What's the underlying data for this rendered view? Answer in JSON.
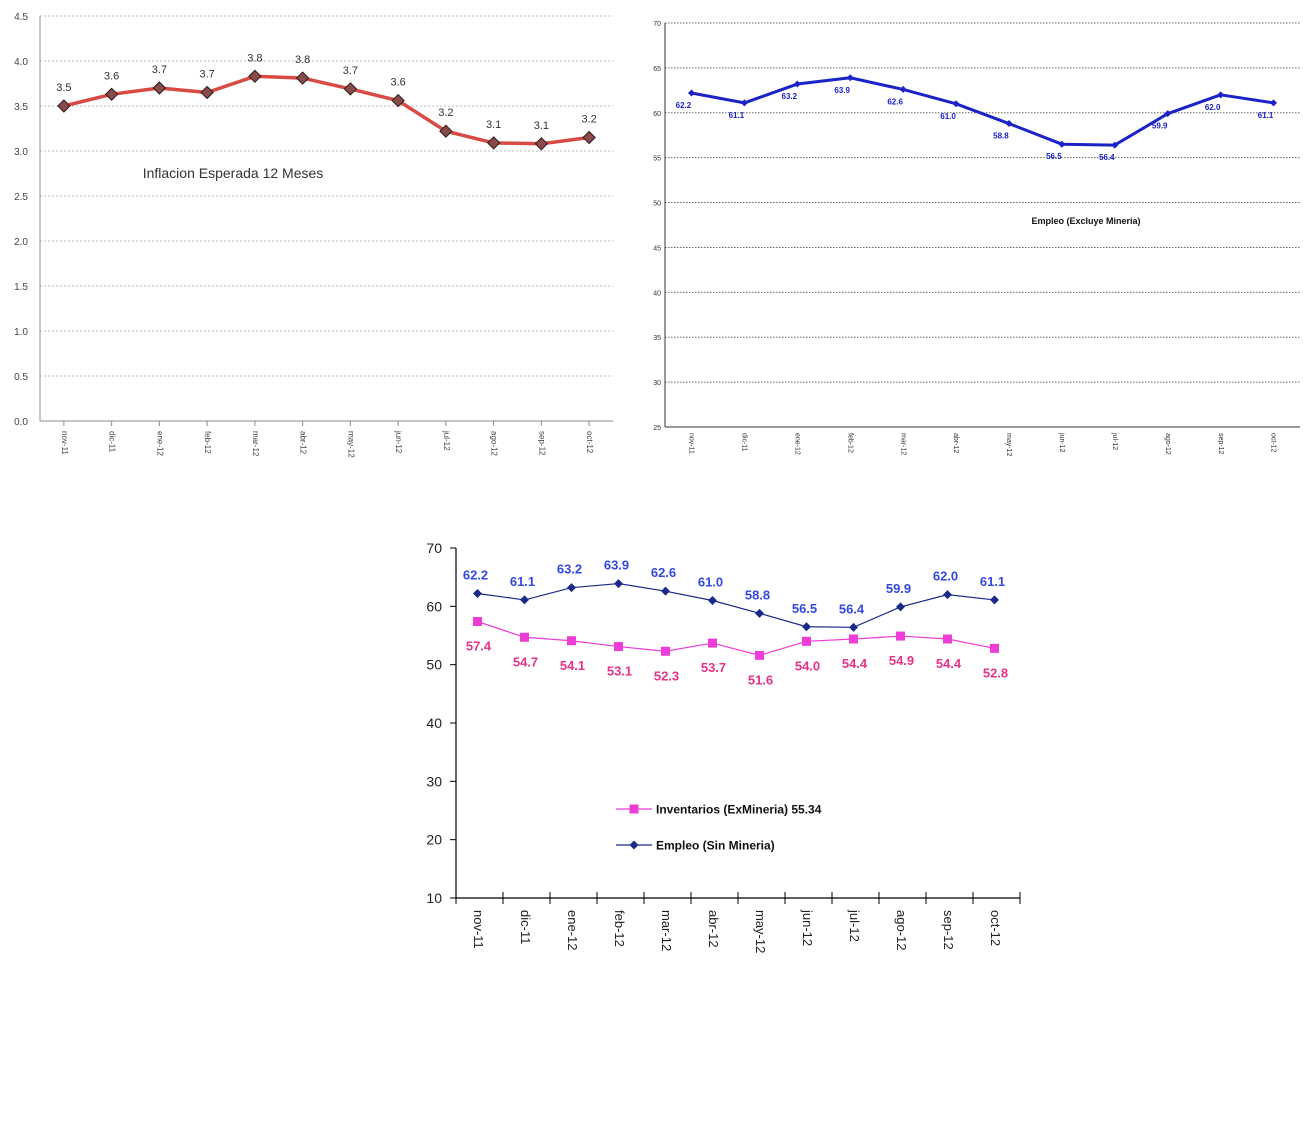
{
  "chart_data": [
    {
      "type": "line",
      "title": "Inflacion Esperada 12 Meses",
      "categories": [
        "nov-11",
        "dic-11",
        "ene-12",
        "feb-12",
        "mar-12",
        "abr-12",
        "may-12",
        "jun-12",
        "jul-12",
        "ago-12",
        "sep-12",
        "oct-12"
      ],
      "series": [
        {
          "values": [
            3.5,
            3.63,
            3.7,
            3.65,
            3.83,
            3.81,
            3.69,
            3.56,
            3.22,
            3.09,
            3.08,
            3.15
          ],
          "labels": [
            "3.5",
            "3.6",
            "3.7",
            "3.7",
            "3.8",
            "3.8",
            "3.7",
            "3.6",
            "3.2",
            "3.1",
            "3.1",
            "3.2"
          ],
          "color": "#d84a44",
          "marker_color": "#8a4a4a"
        }
      ],
      "yticks": [
        "0.0",
        "0.5",
        "1.0",
        "1.5",
        "2.0",
        "2.5",
        "3.0",
        "3.5",
        "4.0",
        "4.5"
      ],
      "ylim": [
        0,
        4.5
      ],
      "grid": true
    },
    {
      "type": "line",
      "title": "Empleo (Excluye Mineria)",
      "categories": [
        "nov-11",
        "dic-11",
        "ene-12",
        "feb-12",
        "mar-12",
        "abr-12",
        "may-12",
        "jun-12",
        "jul-12",
        "ago-12",
        "sep-12",
        "oct-12"
      ],
      "series": [
        {
          "values": [
            62.2,
            61.1,
            63.2,
            63.9,
            62.6,
            61.0,
            58.8,
            56.5,
            56.4,
            59.9,
            62.0,
            61.1
          ],
          "labels": [
            "62.2",
            "61.1",
            "63.2",
            "63.9",
            "62.6",
            "61.0",
            "58.8",
            "56.5",
            "56.4",
            "59.9",
            "62.0",
            "61.1"
          ],
          "color": "#1a22c8"
        }
      ],
      "yticks": [
        "25",
        "30",
        "35",
        "40",
        "45",
        "50",
        "55",
        "60",
        "65",
        "70"
      ],
      "ylim": [
        25,
        70
      ],
      "grid": true
    },
    {
      "type": "line",
      "categories": [
        "nov-11",
        "dic-11",
        "ene-12",
        "feb-12",
        "mar-12",
        "abr-12",
        "may-12",
        "jun-12",
        "jul-12",
        "ago-12",
        "sep-12",
        "oct-12"
      ],
      "series": [
        {
          "name": "Inventarios (ExMineria) 55.34",
          "values": [
            57.4,
            54.7,
            54.1,
            53.1,
            52.3,
            53.7,
            51.6,
            54.0,
            54.4,
            54.9,
            54.4,
            52.8
          ],
          "labels": [
            "57.4",
            "54.7",
            "54.1",
            "53.1",
            "52.3",
            "53.7",
            "51.6",
            "54.0",
            "54.4",
            "54.9",
            "54.4",
            "52.8"
          ],
          "color": "#ee3cd6",
          "label_color": "#e5338a",
          "marker": "square"
        },
        {
          "name": "Empleo (Sin Mineria)",
          "values": [
            62.2,
            61.1,
            63.2,
            63.9,
            62.6,
            61.0,
            58.8,
            56.5,
            56.4,
            59.9,
            62.0,
            61.1
          ],
          "labels": [
            "62.2",
            "61.1",
            "63.2",
            "63.9",
            "62.6",
            "61.0",
            "58.8",
            "56.5",
            "56.4",
            "59.9",
            "62.0",
            "61.1"
          ],
          "color": "#1b2a8a",
          "label_color": "#3348e0",
          "marker": "diamond"
        }
      ],
      "yticks": [
        "10",
        "20",
        "30",
        "40",
        "50",
        "60",
        "70"
      ],
      "ylim": [
        10,
        70
      ],
      "grid": false,
      "legend": "center"
    }
  ]
}
